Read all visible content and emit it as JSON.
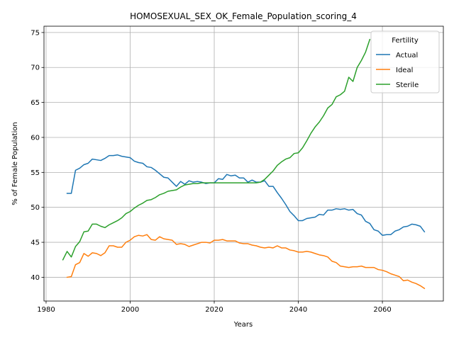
{
  "chart_data": {
    "type": "line",
    "title": "HOMOSEXUAL_SEX_OK_Female_Population_scoring_4",
    "xlabel": "Years",
    "ylabel": "% of Female Population",
    "xlim": [
      1979.5,
      2074.5
    ],
    "ylim": [
      36.6,
      75.9
    ],
    "xticks": [
      1980,
      2000,
      2020,
      2040,
      2060
    ],
    "yticks": [
      40,
      45,
      50,
      55,
      60,
      65,
      70,
      75
    ],
    "grid": true,
    "legend": {
      "title": "Fertility",
      "placement": "top-right"
    },
    "series": [
      {
        "name": "Actual",
        "color": "#1f77b4",
        "x": [
          1985,
          1986,
          1987,
          1988,
          1989,
          1990,
          1991,
          1992,
          1993,
          1994,
          1995,
          1996,
          1997,
          1998,
          1999,
          2000,
          2001,
          2002,
          2003,
          2004,
          2005,
          2006,
          2007,
          2008,
          2009,
          2010,
          2011,
          2012,
          2013,
          2014,
          2015,
          2016,
          2017,
          2018,
          2019,
          2020,
          2021,
          2022,
          2023,
          2024,
          2025,
          2026,
          2027,
          2028,
          2029,
          2030,
          2031,
          2032,
          2033,
          2034,
          2035,
          2036,
          2037,
          2038,
          2039,
          2040,
          2041,
          2042,
          2043,
          2044,
          2045,
          2046,
          2047,
          2048,
          2049,
          2050,
          2051,
          2052,
          2053,
          2054,
          2055,
          2056,
          2057,
          2058,
          2059,
          2060,
          2061,
          2062,
          2063,
          2064,
          2065,
          2066,
          2067,
          2068,
          2069,
          2070
        ],
        "values": [
          52.0,
          52.0,
          55.3,
          55.6,
          56.1,
          56.3,
          56.9,
          56.8,
          56.7,
          57.0,
          57.4,
          57.4,
          57.5,
          57.3,
          57.2,
          57.1,
          56.6,
          56.4,
          56.3,
          55.8,
          55.7,
          55.3,
          54.8,
          54.3,
          54.2,
          53.6,
          53.0,
          53.7,
          53.3,
          53.8,
          53.6,
          53.7,
          53.6,
          53.4,
          53.5,
          53.5,
          54.1,
          54.0,
          54.7,
          54.5,
          54.6,
          54.2,
          54.2,
          53.6,
          53.9,
          53.6,
          53.6,
          53.8,
          53.0,
          53.0,
          52.1,
          51.3,
          50.4,
          49.4,
          48.8,
          48.1,
          48.1,
          48.4,
          48.5,
          48.6,
          49.0,
          48.9,
          49.6,
          49.6,
          49.8,
          49.7,
          49.8,
          49.6,
          49.7,
          49.1,
          48.9,
          48.0,
          47.7,
          46.8,
          46.6,
          46.0,
          46.1,
          46.1,
          46.6,
          46.8,
          47.2,
          47.3,
          47.6,
          47.5,
          47.3,
          46.5
        ]
      },
      {
        "name": "Ideal",
        "color": "#ff7f0e",
        "x": [
          1985,
          1986,
          1987,
          1988,
          1989,
          1990,
          1991,
          1992,
          1993,
          1994,
          1995,
          1996,
          1997,
          1998,
          1999,
          2000,
          2001,
          2002,
          2003,
          2004,
          2005,
          2006,
          2007,
          2008,
          2009,
          2010,
          2011,
          2012,
          2013,
          2014,
          2015,
          2016,
          2017,
          2018,
          2019,
          2020,
          2021,
          2022,
          2023,
          2024,
          2025,
          2026,
          2027,
          2028,
          2029,
          2030,
          2031,
          2032,
          2033,
          2034,
          2035,
          2036,
          2037,
          2038,
          2039,
          2040,
          2041,
          2042,
          2043,
          2044,
          2045,
          2046,
          2047,
          2048,
          2049,
          2050,
          2051,
          2052,
          2053,
          2054,
          2055,
          2056,
          2057,
          2058,
          2059,
          2060,
          2061,
          2062,
          2063,
          2064,
          2065,
          2066,
          2067,
          2068,
          2069,
          2070
        ],
        "values": [
          40.0,
          40.1,
          41.8,
          42.1,
          43.4,
          43.0,
          43.5,
          43.4,
          43.1,
          43.5,
          44.5,
          44.5,
          44.3,
          44.3,
          45.0,
          45.3,
          45.8,
          46.0,
          45.9,
          46.1,
          45.4,
          45.3,
          45.8,
          45.5,
          45.4,
          45.3,
          44.7,
          44.8,
          44.7,
          44.4,
          44.6,
          44.8,
          45.0,
          45.0,
          44.9,
          45.3,
          45.3,
          45.4,
          45.2,
          45.2,
          45.2,
          44.9,
          44.8,
          44.8,
          44.6,
          44.5,
          44.3,
          44.2,
          44.3,
          44.2,
          44.5,
          44.2,
          44.2,
          43.9,
          43.8,
          43.6,
          43.6,
          43.7,
          43.6,
          43.4,
          43.2,
          43.1,
          42.9,
          42.3,
          42.1,
          41.6,
          41.5,
          41.4,
          41.5,
          41.5,
          41.6,
          41.4,
          41.4,
          41.4,
          41.1,
          41.0,
          40.8,
          40.5,
          40.3,
          40.1,
          39.5,
          39.6,
          39.3,
          39.1,
          38.8,
          38.4
        ]
      },
      {
        "name": "Sterile",
        "color": "#2ca02c",
        "x": [
          1984,
          1985,
          1986,
          1987,
          1988,
          1989,
          1990,
          1991,
          1992,
          1993,
          1994,
          1995,
          1996,
          1997,
          1998,
          1999,
          2000,
          2001,
          2002,
          2003,
          2004,
          2005,
          2006,
          2007,
          2008,
          2009,
          2010,
          2011,
          2012,
          2013,
          2014,
          2015,
          2016,
          2017,
          2018,
          2019,
          2020,
          2021,
          2022,
          2023,
          2024,
          2025,
          2026,
          2027,
          2028,
          2029,
          2030,
          2031,
          2032,
          2033,
          2034,
          2035,
          2036,
          2037,
          2038,
          2039,
          2040,
          2041,
          2042,
          2043,
          2044,
          2045,
          2046,
          2047,
          2048,
          2049,
          2050,
          2051,
          2052,
          2053,
          2054,
          2055,
          2056,
          2057
        ],
        "values": [
          42.5,
          43.7,
          42.9,
          44.4,
          45.1,
          46.5,
          46.6,
          47.6,
          47.6,
          47.3,
          47.1,
          47.5,
          47.8,
          48.1,
          48.5,
          49.1,
          49.4,
          49.9,
          50.3,
          50.6,
          51.0,
          51.1,
          51.4,
          51.8,
          52.0,
          52.3,
          52.4,
          52.5,
          52.9,
          53.2,
          53.3,
          53.4,
          53.4,
          53.5,
          53.5,
          53.5,
          53.5,
          53.5,
          53.5,
          53.5,
          53.5,
          53.5,
          53.5,
          53.5,
          53.5,
          53.5,
          53.5,
          53.6,
          54.0,
          54.6,
          55.2,
          56.0,
          56.5,
          56.9,
          57.1,
          57.7,
          57.8,
          58.5,
          59.5,
          60.6,
          61.5,
          62.2,
          63.1,
          64.2,
          64.7,
          65.8,
          66.1,
          66.6,
          68.6,
          68.0,
          70.0,
          71.0,
          72.2,
          74.0
        ]
      }
    ]
  }
}
